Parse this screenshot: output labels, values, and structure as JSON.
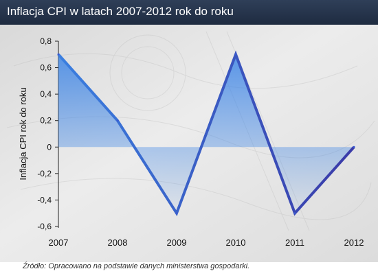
{
  "header": {
    "title": "Inflacja CPI w latach 2007-2012 rok do roku"
  },
  "footer": {
    "source": "Źródło: Opracowano na podstawie danych ministerstwa gospodarki."
  },
  "chart_data": {
    "type": "area",
    "title": "Inflacja CPI w latach 2007-2012 rok do roku",
    "xlabel": "",
    "ylabel": "Inflacja CPI rok do roku",
    "categories": [
      "2007",
      "2008",
      "2009",
      "2010",
      "2011",
      "2012"
    ],
    "series": [
      {
        "values": [
          0.7,
          0.2,
          -0.5,
          0.7,
          -0.5,
          0.0
        ]
      }
    ],
    "ylim": [
      -0.6,
      0.8
    ],
    "yticks": [
      0.8,
      0.6,
      0.4,
      0.2,
      0,
      -0.2,
      -0.4,
      -0.6
    ],
    "ytick_labels": [
      "0,8",
      "0,6",
      "0,4",
      "0,2",
      "0",
      "-0,2",
      "-0,4",
      "-0,6"
    ],
    "colors": {
      "line_start": "#3a7fe0",
      "line_end": "#3a3aa8",
      "fill_top": "#3f86e6"
    },
    "background": "banknote photo (faded)"
  }
}
